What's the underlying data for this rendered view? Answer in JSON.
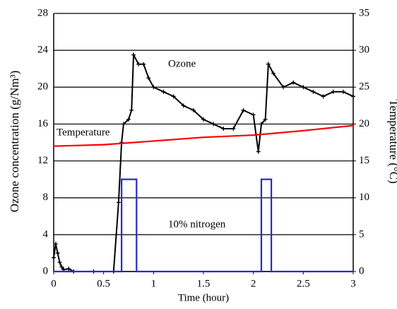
{
  "chart_data": {
    "type": "line",
    "xlabel": "Time (hour)",
    "ylabel": "Ozone concentration (g/Nm³)",
    "y2label": "Temperature (°C)",
    "annotations": [
      "Ozone",
      "Temperature",
      "10% nitrogen"
    ],
    "xlim": [
      0,
      3
    ],
    "xticks": [
      0,
      0.5,
      1,
      1.5,
      2,
      2.5,
      3
    ],
    "ylim": [
      0,
      28
    ],
    "yticks": [
      0,
      4,
      8,
      12,
      16,
      20,
      24,
      28
    ],
    "y2lim": [
      0,
      35
    ],
    "y2ticks": [
      0,
      5,
      10,
      15,
      20,
      25,
      30,
      35
    ],
    "grid": true,
    "series": [
      {
        "color": "#000000",
        "x": [
          0,
          0.02,
          0.04,
          0.06,
          0.08,
          0.1,
          0.15,
          0.2,
          0.4,
          0.6,
          0.65,
          0.68,
          0.7,
          0.75,
          0.78,
          0.8,
          0.85,
          0.9,
          0.95,
          1.0,
          1.1,
          1.2,
          1.3,
          1.4,
          1.5,
          1.6,
          1.7,
          1.8,
          1.9,
          2.0,
          2.05,
          2.08,
          2.12,
          2.15,
          2.2,
          2.3,
          2.4,
          2.5,
          2.6,
          2.7,
          2.8,
          2.9,
          3.0
        ],
        "values": [
          1.5,
          3,
          2,
          1,
          0.5,
          0.2,
          0.3,
          0,
          0,
          0,
          7.5,
          14,
          16,
          16.5,
          17.5,
          23.5,
          22.5,
          22.5,
          21,
          20,
          19.5,
          19,
          18,
          17.5,
          16.5,
          16,
          15.5,
          15.5,
          17.5,
          17,
          13,
          16,
          16.5,
          22.5,
          21.5,
          20,
          20.5,
          20,
          19.5,
          19,
          19.5,
          19.5,
          19
        ]
      },
      {
        "color": "#ff0000",
        "axis": "y2",
        "x": [
          0,
          0.5,
          1,
          1.5,
          2,
          2.5,
          3
        ],
        "values": [
          17,
          17.2,
          17.7,
          18.2,
          18.5,
          19.1,
          19.8
        ]
      },
      {
        "color": "#2a2ac8",
        "x": [
          0,
          0.68,
          0.68,
          0.83,
          0.83,
          2.08,
          2.08,
          2.18,
          2.18,
          3
        ],
        "values": [
          0,
          0,
          10,
          10,
          0,
          0,
          10,
          10,
          0,
          0
        ]
      }
    ]
  }
}
